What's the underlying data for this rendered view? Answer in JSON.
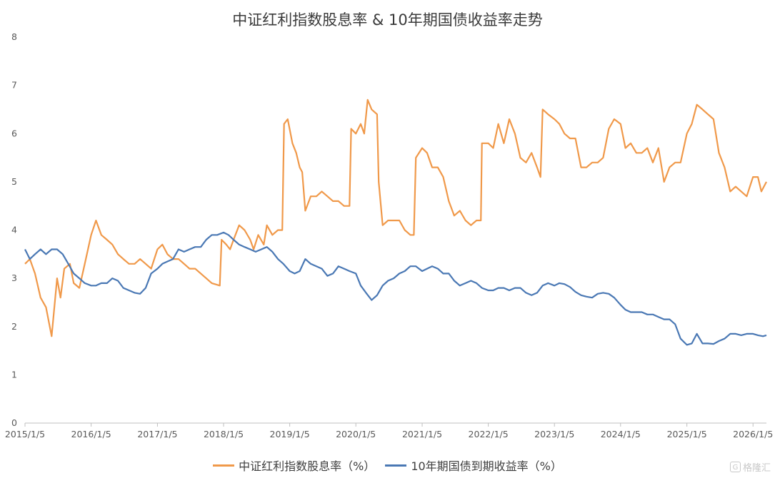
{
  "chart_data": {
    "type": "line",
    "title": "中证红利指数股息率 & 10年期国债收益率走势",
    "ylim": [
      0,
      8
    ],
    "y_ticks": [
      0,
      1,
      2,
      3,
      4,
      5,
      6,
      7,
      8
    ],
    "x_tick_labels": [
      "2015/1/5",
      "2016/1/5",
      "2017/1/5",
      "2018/1/5",
      "2019/1/5",
      "2020/1/5",
      "2021/1/5",
      "2022/1/5",
      "2023/1/5",
      "2024/1/5",
      "2025/1/5",
      "2026/1/5"
    ],
    "x_range": [
      "2015/1/5",
      "2026/3/20"
    ],
    "grid": false,
    "legend_position": "bottom",
    "series": [
      {
        "name": "中证红利指数股息率（%）",
        "color": "#F0994A",
        "points": [
          [
            "2015/1/5",
            3.3
          ],
          [
            "2015/2/1",
            3.4
          ],
          [
            "2015/3/1",
            3.1
          ],
          [
            "2015/4/1",
            2.6
          ],
          [
            "2015/5/1",
            2.4
          ],
          [
            "2015/6/1",
            1.8
          ],
          [
            "2015/7/1",
            3.0
          ],
          [
            "2015/7/20",
            2.6
          ],
          [
            "2015/8/10",
            3.2
          ],
          [
            "2015/9/10",
            3.3
          ],
          [
            "2015/10/1",
            2.9
          ],
          [
            "2015/11/1",
            2.8
          ],
          [
            "2015/12/1",
            3.3
          ],
          [
            "2016/1/5",
            3.9
          ],
          [
            "2016/2/1",
            4.2
          ],
          [
            "2016/3/1",
            3.9
          ],
          [
            "2016/4/1",
            3.8
          ],
          [
            "2016/5/1",
            3.7
          ],
          [
            "2016/6/1",
            3.5
          ],
          [
            "2016/7/1",
            3.4
          ],
          [
            "2016/8/1",
            3.3
          ],
          [
            "2016/9/1",
            3.3
          ],
          [
            "2016/10/1",
            3.4
          ],
          [
            "2016/11/1",
            3.3
          ],
          [
            "2016/12/1",
            3.2
          ],
          [
            "2017/1/5",
            3.6
          ],
          [
            "2017/2/1",
            3.7
          ],
          [
            "2017/3/1",
            3.5
          ],
          [
            "2017/4/1",
            3.4
          ],
          [
            "2017/5/1",
            3.4
          ],
          [
            "2017/6/1",
            3.3
          ],
          [
            "2017/7/1",
            3.2
          ],
          [
            "2017/8/1",
            3.2
          ],
          [
            "2017/9/1",
            3.1
          ],
          [
            "2017/10/1",
            3.0
          ],
          [
            "2017/11/1",
            2.9
          ],
          [
            "2017/12/15",
            2.85
          ],
          [
            "2017/12/25",
            3.8
          ],
          [
            "2018/1/20",
            3.7
          ],
          [
            "2018/2/10",
            3.6
          ],
          [
            "2018/3/1",
            3.8
          ],
          [
            "2018/4/1",
            4.1
          ],
          [
            "2018/5/1",
            4.0
          ],
          [
            "2018/6/1",
            3.8
          ],
          [
            "2018/6/20",
            3.6
          ],
          [
            "2018/7/15",
            3.9
          ],
          [
            "2018/8/15",
            3.7
          ],
          [
            "2018/9/1",
            4.1
          ],
          [
            "2018/10/1",
            3.9
          ],
          [
            "2018/11/1",
            4.0
          ],
          [
            "2018/11/25",
            4.0
          ],
          [
            "2018/12/5",
            6.2
          ],
          [
            "2018/12/25",
            6.3
          ],
          [
            "2019/1/20",
            5.8
          ],
          [
            "2019/2/10",
            5.6
          ],
          [
            "2019/3/1",
            5.3
          ],
          [
            "2019/3/15",
            5.2
          ],
          [
            "2019/4/1",
            4.4
          ],
          [
            "2019/5/1",
            4.7
          ],
          [
            "2019/6/1",
            4.7
          ],
          [
            "2019/7/1",
            4.8
          ],
          [
            "2019/8/1",
            4.7
          ],
          [
            "2019/9/1",
            4.6
          ],
          [
            "2019/10/1",
            4.6
          ],
          [
            "2019/11/1",
            4.5
          ],
          [
            "2019/12/1",
            4.5
          ],
          [
            "2019/12/10",
            6.1
          ],
          [
            "2020/1/5",
            6.0
          ],
          [
            "2020/2/1",
            6.2
          ],
          [
            "2020/2/20",
            6.0
          ],
          [
            "2020/3/10",
            6.7
          ],
          [
            "2020/4/1",
            6.5
          ],
          [
            "2020/5/1",
            6.4
          ],
          [
            "2020/5/10",
            5.0
          ],
          [
            "2020/6/1",
            4.1
          ],
          [
            "2020/7/1",
            4.2
          ],
          [
            "2020/8/1",
            4.2
          ],
          [
            "2020/9/1",
            4.2
          ],
          [
            "2020/10/1",
            4.0
          ],
          [
            "2020/11/1",
            3.9
          ],
          [
            "2020/11/20",
            3.9
          ],
          [
            "2020/12/1",
            5.5
          ],
          [
            "2021/1/5",
            5.7
          ],
          [
            "2021/2/1",
            5.6
          ],
          [
            "2021/3/1",
            5.3
          ],
          [
            "2021/4/1",
            5.3
          ],
          [
            "2021/5/1",
            5.1
          ],
          [
            "2021/6/1",
            4.6
          ],
          [
            "2021/7/1",
            4.3
          ],
          [
            "2021/8/1",
            4.4
          ],
          [
            "2021/9/1",
            4.2
          ],
          [
            "2021/10/1",
            4.1
          ],
          [
            "2021/11/1",
            4.2
          ],
          [
            "2021/11/25",
            4.2
          ],
          [
            "2021/12/1",
            5.8
          ],
          [
            "2022/1/5",
            5.8
          ],
          [
            "2022/2/1",
            5.7
          ],
          [
            "2022/3/1",
            6.2
          ],
          [
            "2022/4/1",
            5.8
          ],
          [
            "2022/5/1",
            6.3
          ],
          [
            "2022/6/1",
            6.0
          ],
          [
            "2022/7/1",
            5.5
          ],
          [
            "2022/8/1",
            5.4
          ],
          [
            "2022/9/1",
            5.6
          ],
          [
            "2022/10/1",
            5.3
          ],
          [
            "2022/10/20",
            5.1
          ],
          [
            "2022/11/1",
            6.5
          ],
          [
            "2022/12/1",
            6.4
          ],
          [
            "2023/1/5",
            6.3
          ],
          [
            "2023/2/1",
            6.2
          ],
          [
            "2023/3/1",
            6.0
          ],
          [
            "2023/4/1",
            5.9
          ],
          [
            "2023/5/1",
            5.9
          ],
          [
            "2023/6/1",
            5.3
          ],
          [
            "2023/7/1",
            5.3
          ],
          [
            "2023/8/1",
            5.4
          ],
          [
            "2023/9/1",
            5.4
          ],
          [
            "2023/10/1",
            5.5
          ],
          [
            "2023/11/1",
            6.1
          ],
          [
            "2023/12/1",
            6.3
          ],
          [
            "2024/1/5",
            6.2
          ],
          [
            "2024/2/1",
            5.7
          ],
          [
            "2024/3/1",
            5.8
          ],
          [
            "2024/4/1",
            5.6
          ],
          [
            "2024/5/1",
            5.6
          ],
          [
            "2024/6/1",
            5.7
          ],
          [
            "2024/7/1",
            5.4
          ],
          [
            "2024/8/1",
            5.7
          ],
          [
            "2024/9/1",
            5.0
          ],
          [
            "2024/10/1",
            5.3
          ],
          [
            "2024/11/1",
            5.4
          ],
          [
            "2024/12/1",
            5.4
          ],
          [
            "2025/1/5",
            6.0
          ],
          [
            "2025/2/1",
            6.2
          ],
          [
            "2025/3/1",
            6.6
          ],
          [
            "2025/4/1",
            6.5
          ],
          [
            "2025/5/1",
            6.4
          ],
          [
            "2025/6/1",
            6.3
          ],
          [
            "2025/7/1",
            5.6
          ],
          [
            "2025/8/1",
            5.3
          ],
          [
            "2025/9/1",
            4.8
          ],
          [
            "2025/10/1",
            4.9
          ],
          [
            "2025/11/1",
            4.8
          ],
          [
            "2025/12/1",
            4.7
          ],
          [
            "2026/1/5",
            5.1
          ],
          [
            "2026/2/1",
            5.1
          ],
          [
            "2026/2/20",
            4.8
          ],
          [
            "2026/3/20",
            5.0
          ]
        ]
      },
      {
        "name": "10年期国债到期收益率（%）",
        "color": "#4A78B4",
        "points": [
          [
            "2015/1/5",
            3.6
          ],
          [
            "2015/2/1",
            3.4
          ],
          [
            "2015/3/1",
            3.5
          ],
          [
            "2015/4/1",
            3.6
          ],
          [
            "2015/5/1",
            3.5
          ],
          [
            "2015/6/1",
            3.6
          ],
          [
            "2015/7/1",
            3.6
          ],
          [
            "2015/8/1",
            3.5
          ],
          [
            "2015/9/1",
            3.3
          ],
          [
            "2015/10/1",
            3.1
          ],
          [
            "2015/11/1",
            3.0
          ],
          [
            "2015/12/1",
            2.9
          ],
          [
            "2016/1/5",
            2.85
          ],
          [
            "2016/2/1",
            2.85
          ],
          [
            "2016/3/1",
            2.9
          ],
          [
            "2016/4/1",
            2.9
          ],
          [
            "2016/5/1",
            3.0
          ],
          [
            "2016/6/1",
            2.95
          ],
          [
            "2016/7/1",
            2.8
          ],
          [
            "2016/8/1",
            2.75
          ],
          [
            "2016/9/1",
            2.7
          ],
          [
            "2016/10/1",
            2.68
          ],
          [
            "2016/11/1",
            2.8
          ],
          [
            "2016/12/1",
            3.1
          ],
          [
            "2017/1/5",
            3.2
          ],
          [
            "2017/2/1",
            3.3
          ],
          [
            "2017/3/1",
            3.35
          ],
          [
            "2017/4/1",
            3.4
          ],
          [
            "2017/5/1",
            3.6
          ],
          [
            "2017/6/1",
            3.55
          ],
          [
            "2017/7/1",
            3.6
          ],
          [
            "2017/8/1",
            3.65
          ],
          [
            "2017/9/1",
            3.65
          ],
          [
            "2017/10/1",
            3.8
          ],
          [
            "2017/11/1",
            3.9
          ],
          [
            "2017/12/1",
            3.9
          ],
          [
            "2018/1/5",
            3.95
          ],
          [
            "2018/2/1",
            3.9
          ],
          [
            "2018/3/1",
            3.8
          ],
          [
            "2018/4/1",
            3.7
          ],
          [
            "2018/5/1",
            3.65
          ],
          [
            "2018/6/1",
            3.6
          ],
          [
            "2018/7/1",
            3.55
          ],
          [
            "2018/8/1",
            3.6
          ],
          [
            "2018/9/1",
            3.65
          ],
          [
            "2018/10/1",
            3.55
          ],
          [
            "2018/11/1",
            3.4
          ],
          [
            "2018/12/1",
            3.3
          ],
          [
            "2019/1/5",
            3.15
          ],
          [
            "2019/2/1",
            3.1
          ],
          [
            "2019/3/1",
            3.15
          ],
          [
            "2019/4/1",
            3.4
          ],
          [
            "2019/5/1",
            3.3
          ],
          [
            "2019/6/1",
            3.25
          ],
          [
            "2019/7/1",
            3.2
          ],
          [
            "2019/8/1",
            3.05
          ],
          [
            "2019/9/1",
            3.1
          ],
          [
            "2019/10/1",
            3.25
          ],
          [
            "2019/11/1",
            3.2
          ],
          [
            "2019/12/1",
            3.15
          ],
          [
            "2020/1/5",
            3.1
          ],
          [
            "2020/2/1",
            2.85
          ],
          [
            "2020/3/1",
            2.7
          ],
          [
            "2020/4/1",
            2.55
          ],
          [
            "2020/5/1",
            2.65
          ],
          [
            "2020/6/1",
            2.85
          ],
          [
            "2020/7/1",
            2.95
          ],
          [
            "2020/8/1",
            3.0
          ],
          [
            "2020/9/1",
            3.1
          ],
          [
            "2020/10/1",
            3.15
          ],
          [
            "2020/11/1",
            3.25
          ],
          [
            "2020/12/1",
            3.25
          ],
          [
            "2021/1/5",
            3.15
          ],
          [
            "2021/2/1",
            3.2
          ],
          [
            "2021/3/1",
            3.25
          ],
          [
            "2021/4/1",
            3.2
          ],
          [
            "2021/5/1",
            3.1
          ],
          [
            "2021/6/1",
            3.1
          ],
          [
            "2021/7/1",
            2.95
          ],
          [
            "2021/8/1",
            2.85
          ],
          [
            "2021/9/1",
            2.9
          ],
          [
            "2021/10/1",
            2.95
          ],
          [
            "2021/11/1",
            2.9
          ],
          [
            "2021/12/1",
            2.8
          ],
          [
            "2022/1/5",
            2.75
          ],
          [
            "2022/2/1",
            2.75
          ],
          [
            "2022/3/1",
            2.8
          ],
          [
            "2022/4/1",
            2.8
          ],
          [
            "2022/5/1",
            2.75
          ],
          [
            "2022/6/1",
            2.8
          ],
          [
            "2022/7/1",
            2.8
          ],
          [
            "2022/8/1",
            2.7
          ],
          [
            "2022/9/1",
            2.65
          ],
          [
            "2022/10/1",
            2.7
          ],
          [
            "2022/11/1",
            2.85
          ],
          [
            "2022/12/1",
            2.9
          ],
          [
            "2023/1/5",
            2.85
          ],
          [
            "2023/2/1",
            2.9
          ],
          [
            "2023/3/1",
            2.88
          ],
          [
            "2023/4/1",
            2.82
          ],
          [
            "2023/5/1",
            2.72
          ],
          [
            "2023/6/1",
            2.65
          ],
          [
            "2023/7/1",
            2.62
          ],
          [
            "2023/8/1",
            2.6
          ],
          [
            "2023/9/1",
            2.68
          ],
          [
            "2023/10/1",
            2.7
          ],
          [
            "2023/11/1",
            2.68
          ],
          [
            "2023/12/1",
            2.6
          ],
          [
            "2024/1/5",
            2.45
          ],
          [
            "2024/2/1",
            2.35
          ],
          [
            "2024/3/1",
            2.3
          ],
          [
            "2024/4/1",
            2.3
          ],
          [
            "2024/5/1",
            2.3
          ],
          [
            "2024/6/1",
            2.25
          ],
          [
            "2024/7/1",
            2.25
          ],
          [
            "2024/8/1",
            2.2
          ],
          [
            "2024/9/1",
            2.15
          ],
          [
            "2024/10/1",
            2.15
          ],
          [
            "2024/11/1",
            2.05
          ],
          [
            "2024/12/1",
            1.75
          ],
          [
            "2025/1/5",
            1.62
          ],
          [
            "2025/2/1",
            1.65
          ],
          [
            "2025/3/1",
            1.85
          ],
          [
            "2025/4/1",
            1.65
          ],
          [
            "2025/5/1",
            1.65
          ],
          [
            "2025/6/1",
            1.64
          ],
          [
            "2025/7/1",
            1.7
          ],
          [
            "2025/8/1",
            1.75
          ],
          [
            "2025/9/1",
            1.85
          ],
          [
            "2025/10/1",
            1.85
          ],
          [
            "2025/11/1",
            1.82
          ],
          [
            "2025/12/1",
            1.85
          ],
          [
            "2026/1/5",
            1.85
          ],
          [
            "2026/2/1",
            1.82
          ],
          [
            "2026/3/1",
            1.8
          ],
          [
            "2026/3/20",
            1.82
          ]
        ]
      }
    ]
  },
  "watermark": "格隆汇"
}
